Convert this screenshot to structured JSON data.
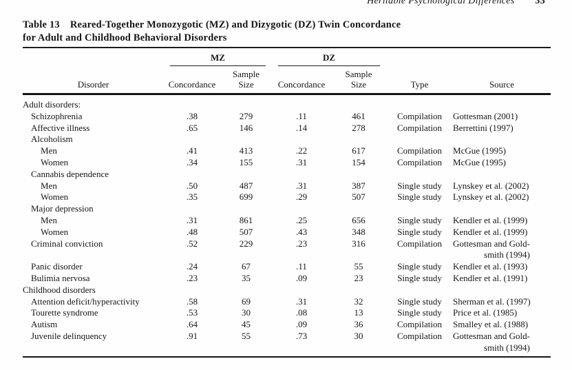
{
  "running_head": {
    "title": "Heritable Psychological Differences",
    "page_number": "33"
  },
  "caption": {
    "label": "Table 13",
    "line1": "Reared-Together Monozygotic (MZ) and Dizygotic (DZ) Twin Concordance",
    "line2": "for Adult and Childhood Behavioral Disorders"
  },
  "table": {
    "spanners": {
      "mz": "MZ",
      "dz": "DZ"
    },
    "col_headers": {
      "disorder": "Disorder",
      "concordance": "Concordance",
      "sample_size_line1": "Sample",
      "sample_size_line2": "Size",
      "type": "Type",
      "source": "Source"
    },
    "rows": [
      {
        "label": "Adult disorders:",
        "indent": 0,
        "mz_concordance": "",
        "mz_sample_size": "",
        "dz_concordance": "",
        "dz_sample_size": "",
        "type": "",
        "source": ""
      },
      {
        "label": "Schizophrenia",
        "indent": 1,
        "mz_concordance": ".38",
        "mz_sample_size": "279",
        "dz_concordance": ".11",
        "dz_sample_size": "461",
        "type": "Compilation",
        "source": "Gottesman (2001)"
      },
      {
        "label": "Affective illness",
        "indent": 1,
        "mz_concordance": ".65",
        "mz_sample_size": "146",
        "dz_concordance": ".14",
        "dz_sample_size": "278",
        "type": "Compilation",
        "source": "Berrettini (1997)"
      },
      {
        "label": "Alcoholism",
        "indent": 1,
        "mz_concordance": "",
        "mz_sample_size": "",
        "dz_concordance": "",
        "dz_sample_size": "",
        "type": "",
        "source": ""
      },
      {
        "label": "Men",
        "indent": 2,
        "mz_concordance": ".41",
        "mz_sample_size": "413",
        "dz_concordance": ".22",
        "dz_sample_size": "617",
        "type": "Compilation",
        "source": "McGue (1995)"
      },
      {
        "label": "Women",
        "indent": 2,
        "mz_concordance": ".34",
        "mz_sample_size": "155",
        "dz_concordance": ".31",
        "dz_sample_size": "154",
        "type": "Compilation",
        "source": "McGue (1995)"
      },
      {
        "label": "Cannabis dependence",
        "indent": 1,
        "mz_concordance": "",
        "mz_sample_size": "",
        "dz_concordance": "",
        "dz_sample_size": "",
        "type": "",
        "source": ""
      },
      {
        "label": "Men",
        "indent": 2,
        "mz_concordance": ".50",
        "mz_sample_size": "487",
        "dz_concordance": ".31",
        "dz_sample_size": "387",
        "type": "Single study",
        "source": "Lynskey et al. (2002)"
      },
      {
        "label": "Women",
        "indent": 2,
        "mz_concordance": ".35",
        "mz_sample_size": "699",
        "dz_concordance": ".29",
        "dz_sample_size": "507",
        "type": "Single study",
        "source": "Lynskey et al. (2002)"
      },
      {
        "label": "Major depression",
        "indent": 1,
        "mz_concordance": "",
        "mz_sample_size": "",
        "dz_concordance": "",
        "dz_sample_size": "",
        "type": "",
        "source": ""
      },
      {
        "label": "Men",
        "indent": 2,
        "mz_concordance": ".31",
        "mz_sample_size": "861",
        "dz_concordance": ".25",
        "dz_sample_size": "656",
        "type": "Single study",
        "source": "Kendler et al. (1999)"
      },
      {
        "label": "Women",
        "indent": 2,
        "mz_concordance": ".48",
        "mz_sample_size": "507",
        "dz_concordance": ".43",
        "dz_sample_size": "348",
        "type": "Single study",
        "source": "Kendler et al. (1999)"
      },
      {
        "label": "Criminal conviction",
        "indent": 1,
        "mz_concordance": ".52",
        "mz_sample_size": "229",
        "dz_concordance": ".23",
        "dz_sample_size": "316",
        "type": "Compilation",
        "source": "Gottesman and Gold-\nsmith (1994)"
      },
      {
        "label": "Panic disorder",
        "indent": 1,
        "mz_concordance": ".24",
        "mz_sample_size": "67",
        "dz_concordance": ".11",
        "dz_sample_size": "55",
        "type": "Single study",
        "source": "Kendler et al. (1993)"
      },
      {
        "label": "Bulimia nervosa",
        "indent": 1,
        "mz_concordance": ".23",
        "mz_sample_size": "35",
        "dz_concordance": ".09",
        "dz_sample_size": "23",
        "type": "Single study",
        "source": "Kendler et al. (1991)"
      },
      {
        "label": "Childhood disorders",
        "indent": 0,
        "mz_concordance": "",
        "mz_sample_size": "",
        "dz_concordance": "",
        "dz_sample_size": "",
        "type": "",
        "source": ""
      },
      {
        "label": "Attention deficit/hyperactivity",
        "indent": 1,
        "mz_concordance": ".58",
        "mz_sample_size": "69",
        "dz_concordance": ".31",
        "dz_sample_size": "32",
        "type": "Single study",
        "source": "Sherman et al. (1997)"
      },
      {
        "label": "Tourette syndrome",
        "indent": 1,
        "mz_concordance": ".53",
        "mz_sample_size": "30",
        "dz_concordance": ".08",
        "dz_sample_size": "13",
        "type": "Single study",
        "source": "Price et al. (1985)"
      },
      {
        "label": "Autism",
        "indent": 1,
        "mz_concordance": ".64",
        "mz_sample_size": "45",
        "dz_concordance": ".09",
        "dz_sample_size": "36",
        "type": "Compilation",
        "source": "Smalley et al. (1988)"
      },
      {
        "label": "Juvenile delinquency",
        "indent": 1,
        "mz_concordance": ".91",
        "mz_sample_size": "55",
        "dz_concordance": ".73",
        "dz_sample_size": "30",
        "type": "Compilation",
        "source": "Gottesman and Gold-\nsmith (1994)"
      }
    ]
  }
}
